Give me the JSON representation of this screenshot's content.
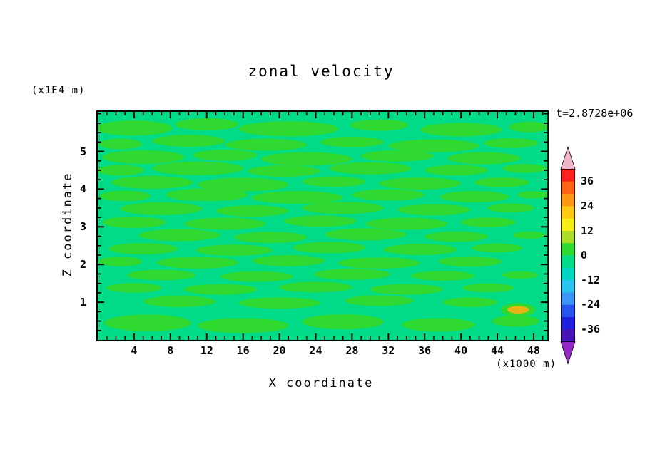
{
  "chart_data": {
    "type": "contour",
    "title": "zonal velocity",
    "time_label": "t=2.8728e+06",
    "background": "#FFFFFF",
    "frame_color": "#000000",
    "tick_color": "#000000",
    "x_axis": {
      "label": "X coordinate",
      "unit": "(x1000 m)",
      "ticks": [
        4,
        8,
        12,
        16,
        20,
        24,
        28,
        32,
        36,
        40,
        44,
        48
      ],
      "minor_step": 1
    },
    "y_axis": {
      "label": "Z coordinate",
      "unit": "(x1E4 m)",
      "ticks": [
        1,
        2,
        3,
        4,
        5
      ],
      "minor_step": 0.25
    },
    "x_range": [
      0,
      49.5
    ],
    "z_range": [
      0,
      6.05
    ],
    "base_level": "-6 to 0",
    "base_color": "#00DB87",
    "patch_level": "0 to 6",
    "patch_color": "#2FD92F",
    "colorbar": {
      "levels_top_to_bottom": [
        42,
        36,
        30,
        24,
        18,
        12,
        6,
        0,
        -6,
        -12,
        -18,
        -24,
        -30,
        -36,
        -42
      ],
      "tick_labels": [
        "36",
        "24",
        "12",
        "0",
        "-12",
        "-24",
        "-36"
      ],
      "segment_colors": [
        "#FF2020",
        "#FF6414",
        "#FF9614",
        "#FFC814",
        "#F5EE14",
        "#AADC28",
        "#2FD92F",
        "#00DB87",
        "#00D7C3",
        "#28C3F0",
        "#3C96F5",
        "#2855F0",
        "#1E1EDC",
        "#4614B4"
      ],
      "arrow_top_color": "#F0B4C8",
      "arrow_bottom_color": "#9628C8"
    },
    "patches": [
      [
        4,
        5.62,
        4.2,
        0.2
      ],
      [
        12,
        5.72,
        3.5,
        0.16
      ],
      [
        21,
        5.6,
        5.5,
        0.2
      ],
      [
        31,
        5.7,
        3.2,
        0.15
      ],
      [
        40,
        5.58,
        4.5,
        0.18
      ],
      [
        47.5,
        5.65,
        2.2,
        0.14
      ],
      [
        2.5,
        5.2,
        2.4,
        0.14
      ],
      [
        10,
        5.28,
        4,
        0.16
      ],
      [
        18.5,
        5.18,
        4.5,
        0.16
      ],
      [
        28,
        5.25,
        3.5,
        0.14
      ],
      [
        37,
        5.15,
        5,
        0.17
      ],
      [
        45.5,
        5.22,
        3,
        0.13
      ],
      [
        5,
        4.85,
        4.5,
        0.18
      ],
      [
        14,
        4.9,
        3.5,
        0.15
      ],
      [
        23,
        4.8,
        5,
        0.18
      ],
      [
        33,
        4.88,
        4,
        0.15
      ],
      [
        42.5,
        4.82,
        4,
        0.16
      ],
      [
        2.5,
        4.5,
        2.6,
        0.14
      ],
      [
        11,
        4.55,
        5,
        0.18
      ],
      [
        20.5,
        4.48,
        4,
        0.15
      ],
      [
        30,
        4.55,
        4.5,
        0.16
      ],
      [
        39.5,
        4.5,
        3.5,
        0.14
      ],
      [
        47,
        4.55,
        2.4,
        0.12
      ],
      [
        6,
        4.18,
        4.5,
        0.17
      ],
      [
        16,
        4.12,
        5,
        0.18
      ],
      [
        26,
        4.2,
        3.5,
        0.14
      ],
      [
        35.5,
        4.15,
        4.5,
        0.16
      ],
      [
        44.5,
        4.18,
        3,
        0.13
      ],
      [
        3,
        3.82,
        2.8,
        0.14
      ],
      [
        12,
        3.85,
        4.5,
        0.17
      ],
      [
        22,
        3.78,
        5,
        0.17
      ],
      [
        32,
        3.85,
        4,
        0.15
      ],
      [
        41.5,
        3.8,
        3.8,
        0.15
      ],
      [
        48,
        3.85,
        1.8,
        0.1
      ],
      [
        7,
        3.48,
        4.5,
        0.17
      ],
      [
        17,
        3.42,
        4,
        0.15
      ],
      [
        27,
        3.5,
        4.5,
        0.16
      ],
      [
        37,
        3.45,
        4,
        0.15
      ],
      [
        45.5,
        3.5,
        2.6,
        0.12
      ],
      [
        4,
        3.12,
        3.5,
        0.15
      ],
      [
        14,
        3.08,
        4.5,
        0.16
      ],
      [
        24.5,
        3.15,
        4,
        0.15
      ],
      [
        34,
        3.08,
        4.5,
        0.16
      ],
      [
        43,
        3.12,
        3,
        0.13
      ],
      [
        9,
        2.78,
        4.5,
        0.16
      ],
      [
        19,
        2.72,
        4,
        0.15
      ],
      [
        29.5,
        2.8,
        4.5,
        0.16
      ],
      [
        39.5,
        2.74,
        3.5,
        0.14
      ],
      [
        47.5,
        2.78,
        1.8,
        0.1
      ],
      [
        5,
        2.42,
        3.8,
        0.15
      ],
      [
        15,
        2.38,
        4.2,
        0.15
      ],
      [
        25.5,
        2.45,
        4,
        0.15
      ],
      [
        35.5,
        2.4,
        4,
        0.15
      ],
      [
        44,
        2.44,
        2.8,
        0.12
      ],
      [
        2.5,
        2.08,
        2.4,
        0.13
      ],
      [
        11,
        2.05,
        4.5,
        0.16
      ],
      [
        21,
        2.1,
        4,
        0.15
      ],
      [
        31,
        2.04,
        4.5,
        0.15
      ],
      [
        41,
        2.08,
        3.5,
        0.14
      ],
      [
        7,
        1.72,
        3.8,
        0.14
      ],
      [
        17.5,
        1.68,
        4,
        0.14
      ],
      [
        28,
        1.74,
        4.2,
        0.15
      ],
      [
        38,
        1.7,
        3.5,
        0.13
      ],
      [
        46.5,
        1.72,
        2,
        0.1
      ],
      [
        4,
        1.38,
        3,
        0.13
      ],
      [
        13.5,
        1.34,
        4,
        0.14
      ],
      [
        24,
        1.4,
        4,
        0.14
      ],
      [
        34,
        1.34,
        4,
        0.14
      ],
      [
        43,
        1.38,
        2.8,
        0.12
      ],
      [
        9,
        1.02,
        4,
        0.15
      ],
      [
        20,
        0.98,
        4.5,
        0.15
      ],
      [
        31,
        1.04,
        3.8,
        0.14
      ],
      [
        41,
        1.0,
        3,
        0.13
      ],
      [
        5.5,
        0.45,
        4.8,
        0.22
      ],
      [
        16,
        0.38,
        5,
        0.2
      ],
      [
        27,
        0.48,
        4.5,
        0.2
      ],
      [
        37.5,
        0.4,
        4,
        0.18
      ],
      [
        46,
        0.5,
        2.6,
        0.15
      ]
    ],
    "hot_spot": {
      "x": 46.3,
      "z": 0.8,
      "rx": 1.2,
      "rz": 0.1,
      "color": "#E8B414"
    }
  }
}
